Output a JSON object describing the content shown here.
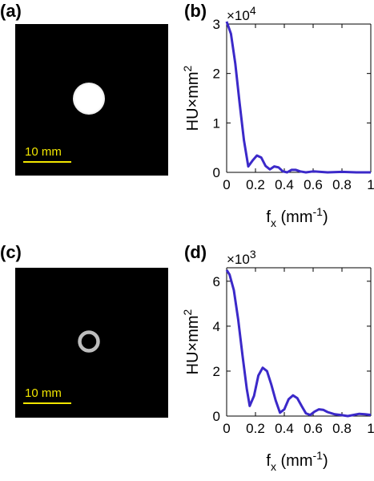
{
  "panels": {
    "a": {
      "label": "(a)",
      "scalebar_text": "10 mm"
    },
    "b": {
      "label": "(b)"
    },
    "c": {
      "label": "(c)",
      "scalebar_text": "10 mm"
    },
    "d": {
      "label": "(d)"
    }
  },
  "chart_data": [
    {
      "type": "line",
      "panel": "b",
      "xlabel": "f_x (mm^-1)",
      "ylabel": "HU×mm^2",
      "exponent_label": "×10^4",
      "xlim": [
        0,
        1
      ],
      "ylim": [
        0,
        3
      ],
      "xticks": [
        "0",
        "0.2",
        "0.4",
        "0.6",
        "0.8",
        "1"
      ],
      "yticks": [
        "0",
        "1",
        "2",
        "3"
      ],
      "color": "#3b29c9",
      "x": [
        0,
        0.03,
        0.06,
        0.09,
        0.12,
        0.15,
        0.18,
        0.21,
        0.24,
        0.27,
        0.3,
        0.33,
        0.36,
        0.39,
        0.42,
        0.45,
        0.48,
        0.51,
        0.55,
        0.6,
        0.65,
        0.7,
        0.8,
        0.9,
        1.0
      ],
      "y": [
        3.05,
        2.8,
        2.2,
        1.4,
        0.65,
        0.12,
        0.24,
        0.34,
        0.3,
        0.13,
        0.06,
        0.12,
        0.1,
        0.02,
        0.0,
        0.05,
        0.05,
        0.02,
        0.0,
        0.02,
        0.01,
        0.0,
        0.01,
        0.0,
        0.0
      ]
    },
    {
      "type": "line",
      "panel": "d",
      "xlabel": "f_x (mm^-1)",
      "ylabel": "HU×mm^2",
      "exponent_label": "×10^3",
      "xlim": [
        0,
        1
      ],
      "ylim": [
        0,
        6.6
      ],
      "xticks": [
        "0",
        "0.2",
        "0.4",
        "0.6",
        "0.8",
        "1"
      ],
      "yticks": [
        "0",
        "2",
        "4",
        "6"
      ],
      "color": "#3b29c9",
      "x": [
        0,
        0.02,
        0.05,
        0.08,
        0.11,
        0.14,
        0.16,
        0.19,
        0.22,
        0.25,
        0.28,
        0.31,
        0.34,
        0.37,
        0.4,
        0.43,
        0.46,
        0.49,
        0.52,
        0.55,
        0.58,
        0.61,
        0.64,
        0.67,
        0.7,
        0.75,
        0.8,
        0.84,
        0.88,
        0.92,
        0.96,
        1.0
      ],
      "y": [
        6.5,
        6.3,
        5.6,
        4.3,
        2.7,
        1.2,
        0.45,
        0.9,
        1.8,
        2.15,
        2.0,
        1.4,
        0.7,
        0.15,
        0.3,
        0.75,
        0.92,
        0.8,
        0.45,
        0.12,
        0.05,
        0.2,
        0.3,
        0.28,
        0.18,
        0.08,
        0.04,
        0.0,
        0.05,
        0.1,
        0.08,
        0.05
      ]
    }
  ]
}
